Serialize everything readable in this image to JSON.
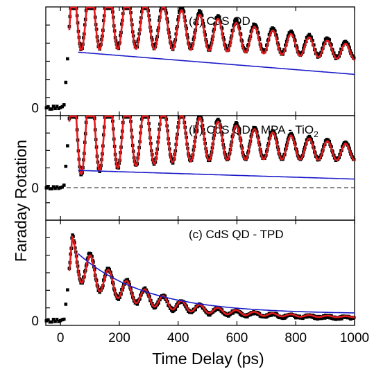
{
  "figure": {
    "xlabel": "Time Delay (ps)",
    "ylabel": "Faraday Rotation"
  },
  "colors": {
    "data": "#000000",
    "fit": "#e41a1c",
    "envelope": "#1a1ac8",
    "zero_line": "#000000"
  },
  "chart_data": [
    {
      "type": "line",
      "panel": "a",
      "title_main": "(a) CdS QD",
      "title_sub": "",
      "title_tail": "",
      "xlim": [
        -50,
        1000
      ],
      "xticks": [
        0,
        200,
        400,
        600,
        800,
        1000
      ],
      "ylim": [
        -0.08,
        1.0
      ],
      "ytick_labels": [
        {
          "value": 0,
          "label": "0"
        }
      ],
      "zero_dashed": false,
      "signal": {
        "onset": 10,
        "rise": 36,
        "base": 0.46,
        "amp": 0.5,
        "tau_env": 2000,
        "env_slope": -0.00022,
        "osc_amp": 0.38,
        "tau_osc": 600,
        "period": 62,
        "phase_peak": 40
      },
      "series": [
        {
          "name": "",
          "style": "data"
        },
        {
          "name": "",
          "style": "fit"
        },
        {
          "name": "",
          "style": "envelope",
          "x": [
            60,
            1000
          ],
          "y": [
            0.55,
            0.33
          ]
        }
      ]
    },
    {
      "type": "line",
      "panel": "b",
      "title_main": "(b) CdS QD - MPA - TiO",
      "title_sub": "2",
      "title_tail": "",
      "xlim": [
        -50,
        1000
      ],
      "xticks": [
        0,
        200,
        400,
        600,
        800,
        1000
      ],
      "ylim": [
        -0.45,
        1.0
      ],
      "ytick_labels": [
        {
          "value": 0,
          "label": "0"
        }
      ],
      "zero_dashed": true,
      "signal": {
        "onset": 10,
        "rise": 36,
        "base": 0.22,
        "amp": 0.66,
        "tau_env": 2000,
        "env_slope": -0.00014,
        "osc_amp": 0.72,
        "tau_osc": 520,
        "period": 62,
        "phase_peak": 40
      },
      "series": [
        {
          "name": "",
          "style": "data"
        },
        {
          "name": "",
          "style": "fit"
        },
        {
          "name": "",
          "style": "envelope",
          "x": [
            60,
            1000
          ],
          "y": [
            0.24,
            0.12
          ]
        }
      ]
    },
    {
      "type": "line",
      "panel": "c",
      "title_main": "(c) CdS QD - TPD",
      "title_sub": "",
      "title_tail": "",
      "xlim": [
        -50,
        1000
      ],
      "xticks": [
        0,
        200,
        400,
        600,
        800,
        1000
      ],
      "ylim": [
        -0.05,
        1.05
      ],
      "ytick_labels": [
        {
          "value": 0,
          "label": "0"
        }
      ],
      "zero_dashed": false,
      "signal": {
        "onset": 10,
        "rise": 36,
        "base": 0.02,
        "amp": 0.66,
        "tau_env": 230,
        "env_slope": 0,
        "osc_amp": 0.22,
        "tau_osc": 260,
        "period": 62,
        "phase_peak": 40
      },
      "series": [
        {
          "name": "",
          "style": "data"
        },
        {
          "name": "",
          "style": "fit"
        },
        {
          "name": "",
          "style": "envelope",
          "x": [
            60,
            1000
          ],
          "y": [
            0.7,
            0.07
          ]
        }
      ]
    }
  ]
}
